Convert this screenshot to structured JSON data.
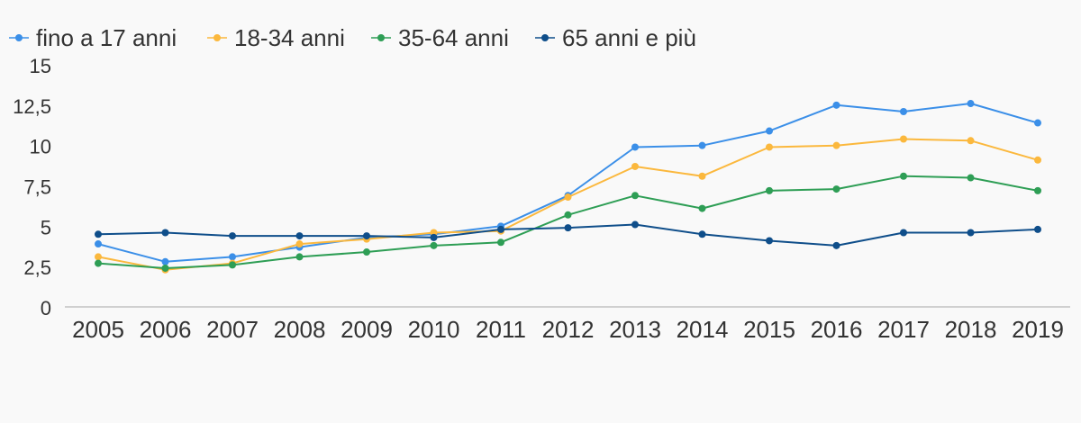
{
  "chart_data": {
    "type": "line",
    "title": "",
    "xlabel": "",
    "ylabel": "",
    "categories": [
      "2005",
      "2006",
      "2007",
      "2008",
      "2009",
      "2010",
      "2011",
      "2012",
      "2013",
      "2014",
      "2015",
      "2016",
      "2017",
      "2018",
      "2019"
    ],
    "ylim": [
      0,
      15
    ],
    "yticks": [
      0,
      2.5,
      5,
      7.5,
      10,
      12.5,
      15
    ],
    "ytick_labels": [
      "0",
      "2,5",
      "5",
      "7,5",
      "10",
      "12,5",
      "15"
    ],
    "grid": false,
    "legend_position": "top-left",
    "series": [
      {
        "name": "fino a 17 anni",
        "color": "#3b8fe8",
        "values": [
          3.9,
          2.8,
          3.1,
          3.7,
          4.3,
          4.5,
          5.0,
          6.9,
          9.9,
          10.0,
          10.9,
          12.5,
          12.1,
          12.6,
          11.4
        ]
      },
      {
        "name": "18-34 anni",
        "color": "#fbb83d",
        "values": [
          3.1,
          2.3,
          2.7,
          3.9,
          4.2,
          4.6,
          4.7,
          6.8,
          8.7,
          8.1,
          9.9,
          10.0,
          10.4,
          10.3,
          9.1
        ]
      },
      {
        "name": "35-64 anni",
        "color": "#2e9e55",
        "values": [
          2.7,
          2.4,
          2.6,
          3.1,
          3.4,
          3.8,
          4.0,
          5.7,
          6.9,
          6.1,
          7.2,
          7.3,
          8.1,
          8.0,
          7.2
        ]
      },
      {
        "name": "65 anni e più",
        "color": "#0f4e8a",
        "values": [
          4.5,
          4.6,
          4.4,
          4.4,
          4.4,
          4.3,
          4.8,
          4.9,
          5.1,
          4.5,
          4.1,
          3.8,
          4.6,
          4.6,
          4.8
        ]
      }
    ]
  }
}
